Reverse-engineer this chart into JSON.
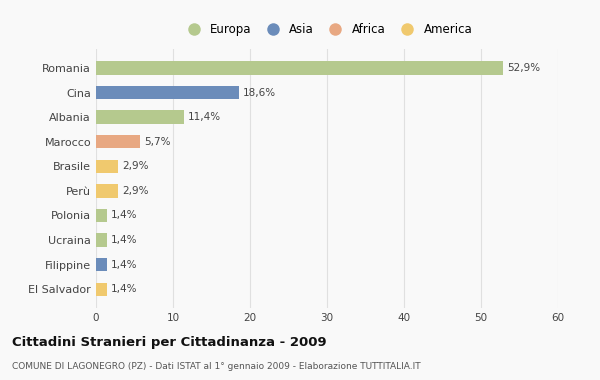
{
  "categories": [
    "Romania",
    "Cina",
    "Albania",
    "Marocco",
    "Brasile",
    "Perù",
    "Polonia",
    "Ucraina",
    "Filippine",
    "El Salvador"
  ],
  "values": [
    52.9,
    18.6,
    11.4,
    5.7,
    2.9,
    2.9,
    1.4,
    1.4,
    1.4,
    1.4
  ],
  "labels": [
    "52,9%",
    "18,6%",
    "11,4%",
    "5,7%",
    "2,9%",
    "2,9%",
    "1,4%",
    "1,4%",
    "1,4%",
    "1,4%"
  ],
  "colors": [
    "#b5c98e",
    "#6b8cba",
    "#b5c98e",
    "#e8a882",
    "#f0c96e",
    "#f0c96e",
    "#b5c98e",
    "#b5c98e",
    "#6b8cba",
    "#f0c96e"
  ],
  "legend_labels": [
    "Europa",
    "Asia",
    "Africa",
    "America"
  ],
  "legend_colors": [
    "#b5c98e",
    "#6b8cba",
    "#e8a882",
    "#f0c96e"
  ],
  "title": "Cittadini Stranieri per Cittadinanza - 2009",
  "subtitle": "COMUNE DI LAGONEGRO (PZ) - Dati ISTAT al 1° gennaio 2009 - Elaborazione TUTTITALIA.IT",
  "xlim": [
    0,
    60
  ],
  "xticks": [
    0,
    10,
    20,
    30,
    40,
    50,
    60
  ],
  "background_color": "#f9f9f9",
  "grid_color": "#e0e0e0",
  "bar_height": 0.55
}
